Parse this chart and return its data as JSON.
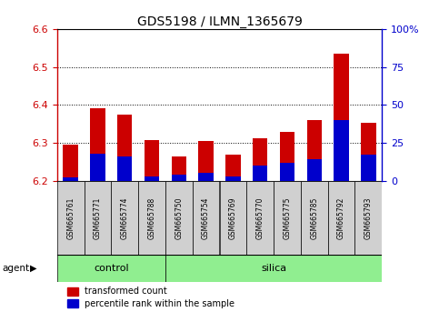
{
  "title": "GDS5198 / ILMN_1365679",
  "samples": [
    "GSM665761",
    "GSM665771",
    "GSM665774",
    "GSM665788",
    "GSM665750",
    "GSM665754",
    "GSM665769",
    "GSM665770",
    "GSM665775",
    "GSM665785",
    "GSM665792",
    "GSM665793"
  ],
  "groups": [
    "control",
    "control",
    "control",
    "control",
    "silica",
    "silica",
    "silica",
    "silica",
    "silica",
    "silica",
    "silica",
    "silica"
  ],
  "red_values": [
    6.295,
    6.39,
    6.375,
    6.307,
    6.265,
    6.305,
    6.27,
    6.312,
    6.33,
    6.36,
    6.535,
    6.352
  ],
  "blue_values_pct": [
    2,
    18,
    16,
    3,
    4,
    5,
    3,
    10,
    12,
    14,
    40,
    17
  ],
  "ymin": 6.2,
  "ymax": 6.6,
  "y2min": 0,
  "y2max": 100,
  "bar_color_red": "#cc0000",
  "bar_color_blue": "#0000cc",
  "control_color": "#90EE90",
  "silica_color": "#90EE90",
  "bg_color": "#ffffff",
  "tick_gray": "#cccccc",
  "bar_width": 0.55
}
